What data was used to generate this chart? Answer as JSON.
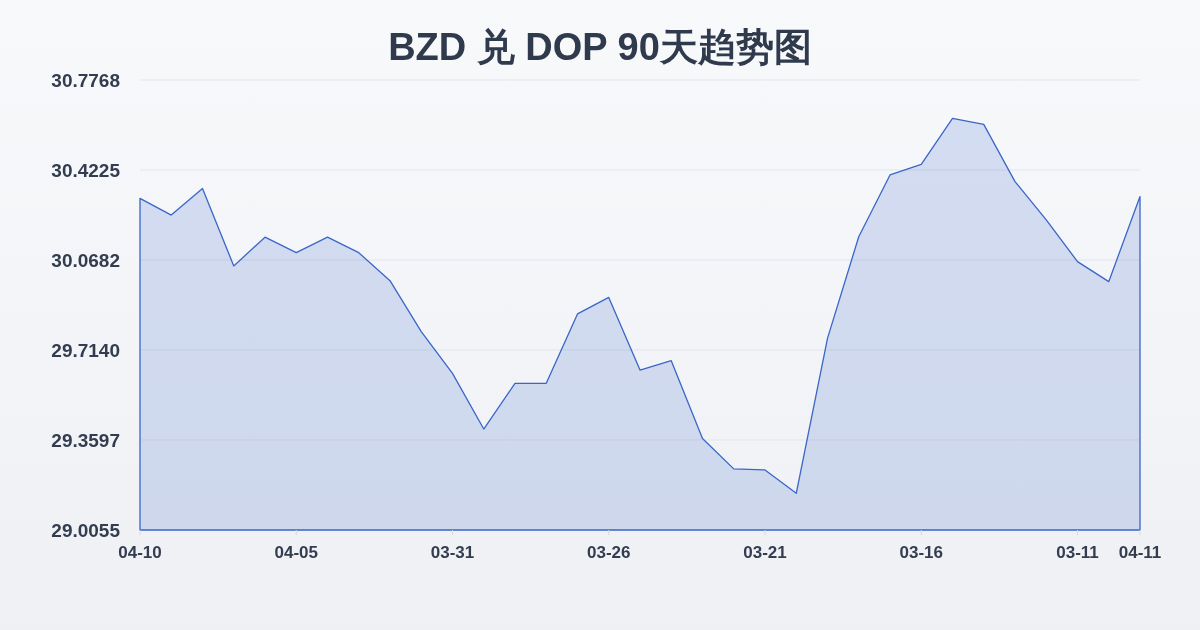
{
  "chart_data": {
    "type": "area",
    "title": "BZD 兑 DOP 90天趋势图",
    "categories": [
      "04-10",
      null,
      null,
      null,
      null,
      "04-05",
      null,
      null,
      null,
      null,
      "03-31",
      null,
      null,
      null,
      null,
      "03-26",
      null,
      null,
      null,
      null,
      "03-21",
      null,
      null,
      null,
      null,
      "03-16",
      null,
      null,
      null,
      null,
      "03-11",
      null,
      "04-11"
    ],
    "series": [
      {
        "color": "#3a66c8",
        "values": [
          30.311,
          30.245,
          30.35,
          30.045,
          30.158,
          30.097,
          30.158,
          30.097,
          29.987,
          29.786,
          29.622,
          29.403,
          29.583,
          29.583,
          29.856,
          29.921,
          29.635,
          29.672,
          29.366,
          29.246,
          29.242,
          29.15,
          29.76,
          30.16,
          30.403,
          30.445,
          30.626,
          30.602,
          30.377,
          30.226,
          30.062,
          29.983,
          30.318
        ]
      }
    ],
    "ylim": [
      29.0055,
      30.7768
    ],
    "yticks": [
      29.0055,
      29.3597,
      {
        "value": 29.714,
        "label": "29.7140"
      },
      30.0682,
      30.4225,
      30.7768
    ],
    "grid": "y"
  }
}
